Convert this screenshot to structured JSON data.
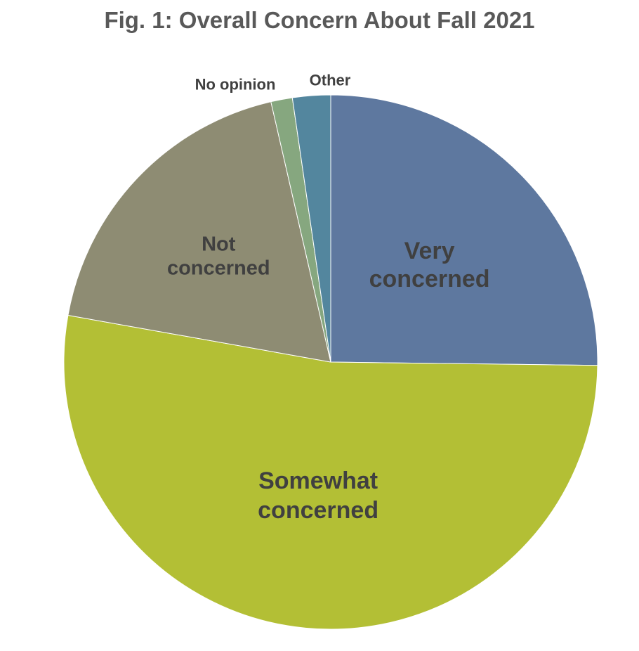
{
  "chart_data": {
    "type": "pie",
    "title": "Fig. 1: Overall Concern About Fall 2021",
    "slices": [
      {
        "label": "Very concerned",
        "label_lines": [
          "Very",
          "concerned"
        ],
        "value": 25.2,
        "color": "#5e789f"
      },
      {
        "label": "Somewhat concerned",
        "label_lines": [
          "Somewhat",
          "concerned"
        ],
        "value": 52.6,
        "color": "#b3bf35"
      },
      {
        "label": "Not concerned",
        "label_lines": [
          "Not",
          "concerned"
        ],
        "value": 18.6,
        "color": "#8e8c73"
      },
      {
        "label": "No opinion",
        "label_lines": [
          "No opinion"
        ],
        "value": 1.3,
        "color": "#86a77f"
      },
      {
        "label": "Other",
        "label_lines": [
          "Other"
        ],
        "value": 2.3,
        "color": "#53869e"
      }
    ],
    "start_angle": "12 o'clock, clockwise",
    "legend": "none"
  }
}
